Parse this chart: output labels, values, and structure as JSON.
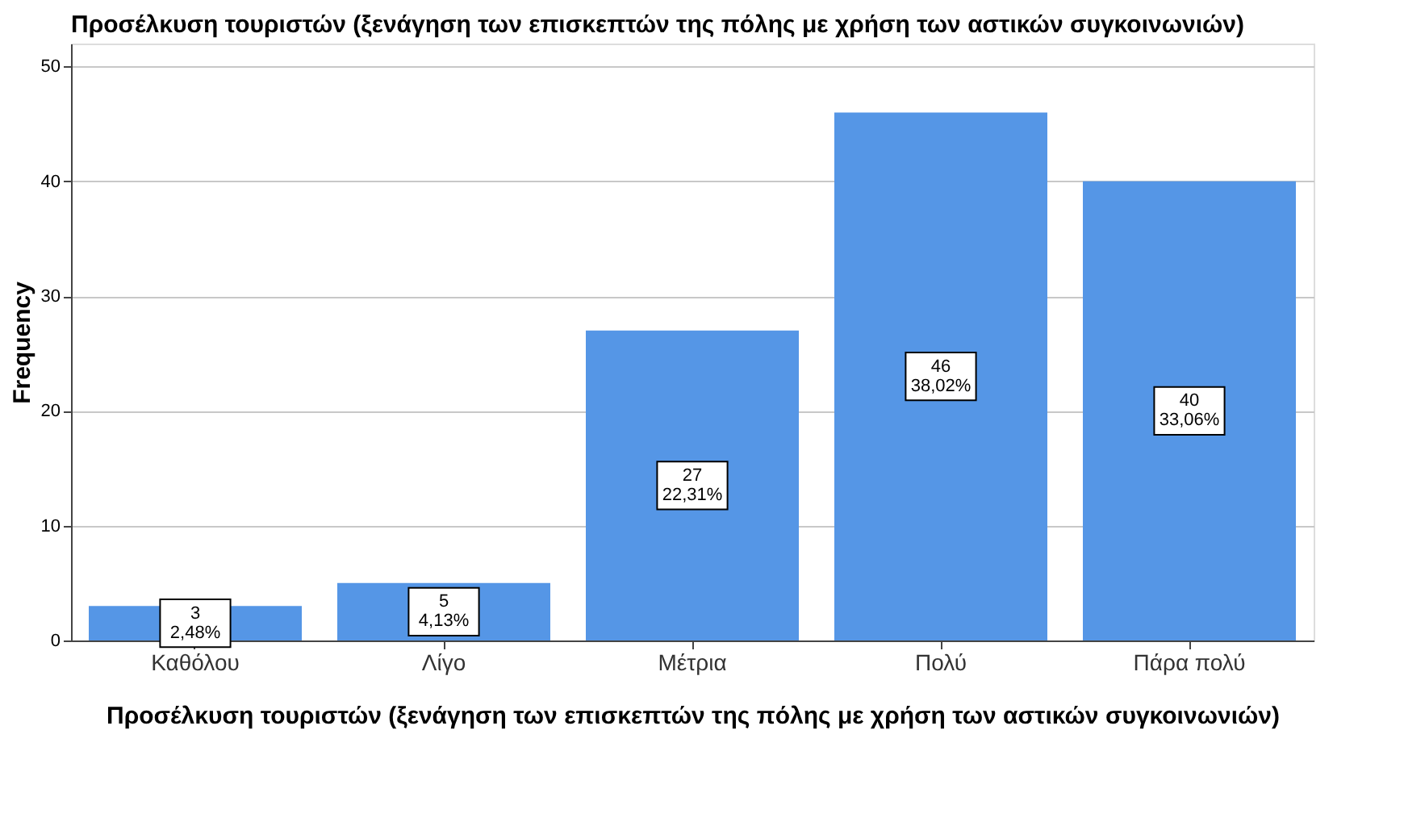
{
  "chart_data": {
    "type": "bar",
    "title": "Προσέλκυση τουριστών (ξενάγηση των επισκεπτών της πόλης με χρήση των αστικών συγκοινωνιών)",
    "xlabel": "Προσέλκυση τουριστών (ξενάγηση των επισκεπτών της πόλης με χρήση των αστικών συγκοινωνιών)",
    "ylabel": "Frequency",
    "categories": [
      "Καθόλου",
      "Λίγο",
      "Μέτρια",
      "Πολύ",
      "Πάρα πολύ"
    ],
    "values": [
      3,
      5,
      27,
      46,
      40
    ],
    "value_labels": [
      "3\n2,48%",
      "5\n4,13%",
      "27\n22,31%",
      "46\n38,02%",
      "40\n33,06%"
    ],
    "color": "#5596e6",
    "ylim": [
      0,
      52
    ],
    "yticks": [
      0,
      10,
      20,
      30,
      40,
      50
    ],
    "grid": "y"
  }
}
